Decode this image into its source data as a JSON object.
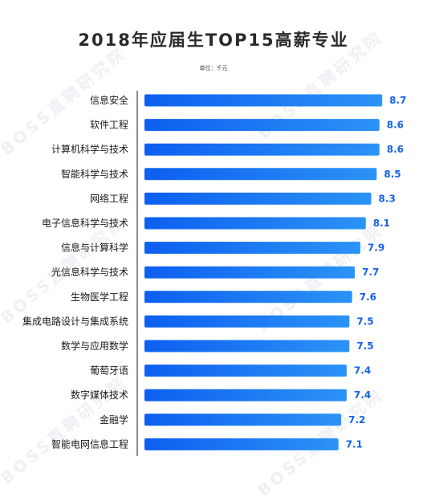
{
  "title": "2018年应届生TOP15高薪专业",
  "unit_note": "单位：千元",
  "watermark": "BOSS直聘研究院",
  "colors": {
    "bar_start": "#0d5ff0",
    "bar_end": "#2b93f6",
    "value_text": "#1463e6",
    "axis": "#666666"
  },
  "chart_data": {
    "type": "bar",
    "orientation": "horizontal",
    "title": "2018年应届生TOP15高薪专业",
    "unit": "单位：千元",
    "categories": [
      "信息安全",
      "软件工程",
      "计算机科学与技术",
      "智能科学与技术",
      "网络工程",
      "电子信息科学与技术",
      "信息与计算科学",
      "光信息科学与技术",
      "生物医学工程",
      "集成电路设计与集成系统",
      "数学与应用数学",
      "葡萄牙语",
      "数字媒体技术",
      "金融学",
      "智能电网信息工程"
    ],
    "values": [
      8.7,
      8.6,
      8.6,
      8.5,
      8.3,
      8.1,
      7.9,
      7.7,
      7.6,
      7.5,
      7.5,
      7.4,
      7.4,
      7.2,
      7.1
    ],
    "value_labels": [
      "8.7",
      "8.6",
      "8.6",
      "8.5",
      "8.3",
      "8.1",
      "7.9",
      "7.7",
      "7.6",
      "7.5",
      "7.5",
      "7.4",
      "7.4",
      "7.2",
      "7.1"
    ],
    "xlim": [
      0,
      9.4
    ],
    "grid": false,
    "legend": "none"
  }
}
